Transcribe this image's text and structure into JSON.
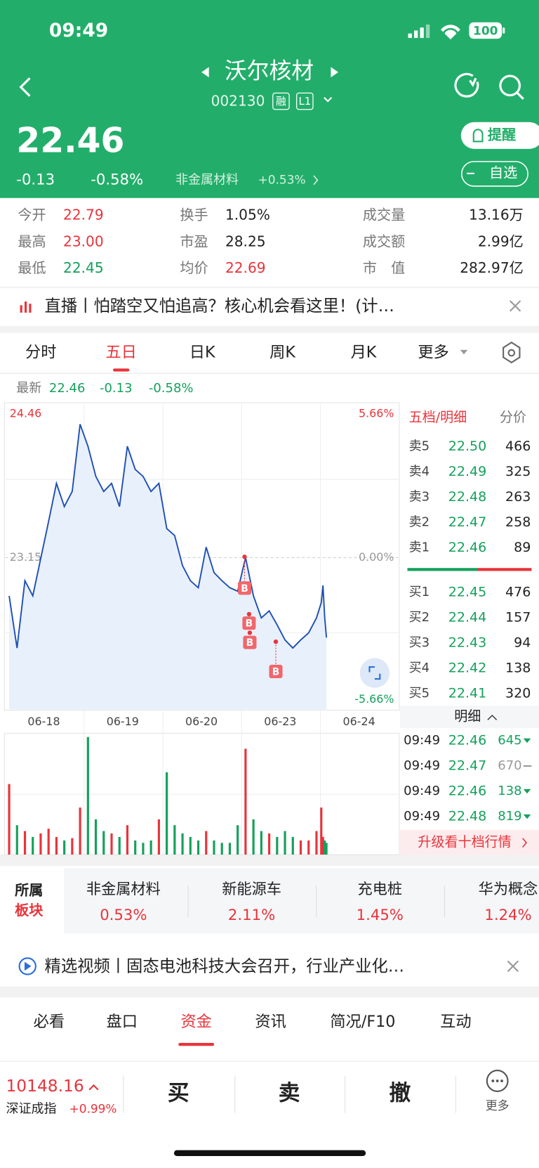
{
  "status": {
    "time": "09:49",
    "battery": "100"
  },
  "header": {
    "title": "沃尔核材",
    "code": "002130",
    "badges": [
      "融",
      "L1"
    ]
  },
  "quote": {
    "price": "22.46",
    "change": "-0.13",
    "change_pct": "-0.58%",
    "sector": "非金属材料",
    "sector_change": "+0.53%",
    "alert": "提醒",
    "watch": "自选"
  },
  "stats": [
    {
      "label": "今开",
      "value": "22.79",
      "color": "#e8343b"
    },
    {
      "label": "最高",
      "value": "23.00",
      "color": "#e8343b"
    },
    {
      "label": "最低",
      "value": "22.45",
      "color": "#15a05c"
    },
    {
      "label": "换手",
      "value": "1.05%",
      "color": "#222222"
    },
    {
      "label": "市盈",
      "value": "28.25",
      "color": "#222222"
    },
    {
      "label": "均价",
      "value": "22.69",
      "color": "#e8343b"
    },
    {
      "label": "成交量",
      "value": "13.16万",
      "color": "#222222"
    },
    {
      "label": "成交额",
      "value": "2.99亿",
      "color": "#222222"
    },
    {
      "label": "市　值",
      "value": "282.97亿",
      "color": "#222222"
    }
  ],
  "banner": "直播丨怕踏空又怕追高？核心机会看这里！(计…",
  "tabs": [
    "分时",
    "五日",
    "日K",
    "周K",
    "月K",
    "更多"
  ],
  "latest": {
    "label": "最新",
    "price": "22.46",
    "change": "-0.13",
    "change_pct": "-0.58%"
  },
  "chart": {
    "type": "line",
    "categories": [
      "06-18",
      "06-19",
      "06-20",
      "06-23",
      "06-24"
    ],
    "ylim": [
      21.84,
      24.46
    ],
    "yticks": [
      21.84,
      23.15,
      24.46
    ],
    "pct_labels": [
      "-5.66%",
      "0.00%",
      "5.66%"
    ],
    "color": "#1f4fb5",
    "grid": true,
    "values": [
      22.82,
      22.37,
      22.95,
      22.82,
      23.14,
      23.46,
      23.79,
      23.59,
      23.72,
      24.3,
      24.11,
      23.85,
      23.72,
      23.79,
      23.59,
      24.11,
      23.91,
      23.85,
      23.72,
      23.79,
      23.4,
      23.34,
      23.08,
      22.95,
      22.89,
      23.24,
      23.02,
      22.95,
      22.89,
      22.86,
      23.15,
      22.82,
      22.63,
      22.69,
      22.57,
      22.44,
      22.37,
      22.44,
      22.5,
      22.63,
      22.76,
      22.91,
      22.63,
      22.46
    ],
    "volumes": [
      60,
      25,
      20,
      15,
      18,
      22,
      15,
      12,
      14,
      40,
      100,
      30,
      20,
      18,
      15,
      25,
      12,
      10,
      12,
      30,
      70,
      25,
      18,
      15,
      12,
      20,
      12,
      10,
      10,
      25,
      90,
      30,
      20,
      18,
      15,
      20,
      15,
      12,
      12,
      20,
      40,
      15,
      12,
      10
    ],
    "markers": [
      "B",
      "B",
      "B",
      "B"
    ]
  },
  "orderbook": {
    "title": "五档/明细",
    "mode": "分价",
    "asks": [
      {
        "label": "卖5",
        "price": "22.50",
        "volume": "466"
      },
      {
        "label": "卖4",
        "price": "22.49",
        "volume": "325"
      },
      {
        "label": "卖3",
        "price": "22.48",
        "volume": "263"
      },
      {
        "label": "卖2",
        "price": "22.47",
        "volume": "258"
      },
      {
        "label": "卖1",
        "price": "22.46",
        "volume": "89"
      }
    ],
    "bids": [
      {
        "label": "买1",
        "price": "22.45",
        "volume": "476"
      },
      {
        "label": "买2",
        "price": "22.44",
        "volume": "157"
      },
      {
        "label": "买3",
        "price": "22.43",
        "volume": "94"
      },
      {
        "label": "买4",
        "price": "22.42",
        "volume": "138"
      },
      {
        "label": "买5",
        "price": "22.41",
        "volume": "320"
      }
    ],
    "ticks_title": "明细",
    "ticks": [
      {
        "time": "09:49",
        "price": "22.46",
        "volume": "645",
        "color": "#15a05c"
      },
      {
        "time": "09:49",
        "price": "22.47",
        "volume": "670",
        "color": "#9a9a9a"
      },
      {
        "time": "09:49",
        "price": "22.46",
        "volume": "138",
        "color": "#15a05c"
      },
      {
        "time": "09:49",
        "price": "22.48",
        "volume": "819",
        "color": "#15a05c"
      }
    ],
    "upgrade": "升级看十档行情"
  },
  "sectors": {
    "label": [
      "所属",
      "板块"
    ],
    "items": [
      {
        "name": "非金属材料",
        "change": "0.53%"
      },
      {
        "name": "新能源车",
        "change": "2.11%"
      },
      {
        "name": "充电桩",
        "change": "1.45%"
      },
      {
        "name": "华为概念",
        "change": "1.24%"
      }
    ]
  },
  "video": "精选视频丨固态电池科技大会召开，行业产业化…",
  "bottom_tabs": [
    "必看",
    "盘口",
    "资金",
    "资讯",
    "简况/F10",
    "互动"
  ],
  "footer": {
    "index_value": "10148.16",
    "index_name": "深证成指",
    "index_change": "+0.99%",
    "buttons": [
      "买",
      "卖",
      "撤"
    ],
    "more": "更多"
  }
}
